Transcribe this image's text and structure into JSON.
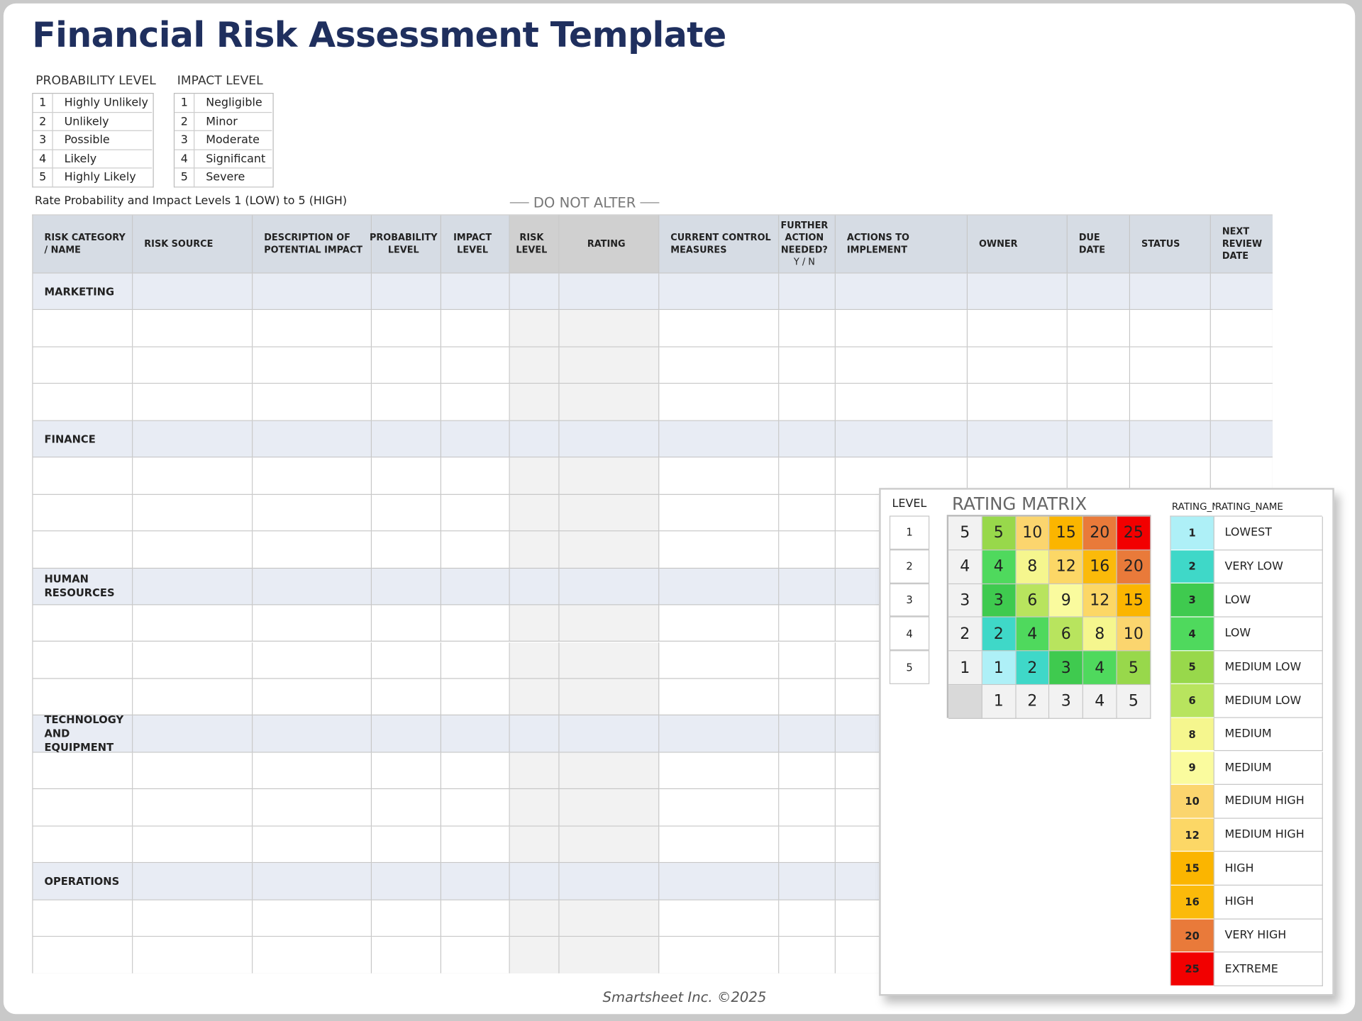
{
  "title": "Financial Risk Assessment Template",
  "probability_level": {
    "heading": "PROBABILITY LEVEL",
    "rows": [
      [
        1,
        "Highly Unlikely"
      ],
      [
        2,
        "Unlikely"
      ],
      [
        3,
        "Possible"
      ],
      [
        4,
        "Likely"
      ],
      [
        5,
        "Highly Likely"
      ]
    ]
  },
  "impact_level": {
    "heading": "IMPACT LEVEL",
    "rows": [
      [
        1,
        "Negligible"
      ],
      [
        2,
        "Minor"
      ],
      [
        3,
        "Moderate"
      ],
      [
        4,
        "Significant"
      ],
      [
        5,
        "Severe"
      ]
    ]
  },
  "rate_note": "Rate Probability and Impact Levels 1 (LOW) to 5 (HIGH)",
  "do_not_alter": "DO NOT ALTER",
  "table": {
    "headers": [
      "RISK CATEGORY / NAME",
      "RISK SOURCE",
      "DESCRIPTION OF POTENTIAL IMPACT",
      "PROBABILITY LEVEL",
      "IMPACT LEVEL",
      "RISK LEVEL",
      "RATING",
      "CURRENT CONTROL MEASURES",
      {
        "text": "FURTHER ACTION NEEDED?",
        "note": "Y / N"
      },
      "ACTIONS TO IMPLEMENT",
      "OWNER",
      "DUE DATE",
      "STATUS",
      "NEXT REVIEW DATE"
    ],
    "sections": [
      "MARKETING",
      "FINANCE",
      "HUMAN RESOURCES",
      "TECHNOLOGY AND EQUIPMENT",
      "OPERATIONS"
    ]
  },
  "rating_matrix": {
    "level_heading": "LEVEL",
    "levels": [
      1,
      2,
      3,
      4,
      5
    ],
    "title": "RATING MATRIX",
    "rows": [
      {
        "label": 5,
        "cells": [
          5,
          10,
          15,
          20,
          25
        ]
      },
      {
        "label": 4,
        "cells": [
          4,
          8,
          12,
          16,
          20
        ]
      },
      {
        "label": 3,
        "cells": [
          3,
          6,
          9,
          12,
          15
        ]
      },
      {
        "label": 2,
        "cells": [
          2,
          4,
          6,
          8,
          10
        ]
      },
      {
        "label": 1,
        "cells": [
          1,
          2,
          3,
          4,
          5
        ]
      }
    ],
    "columns": [
      1,
      2,
      3,
      4,
      5
    ]
  },
  "rating_legend": {
    "headers": [
      "RATING_N",
      "RATING_NAME"
    ],
    "rows": [
      {
        "value": 1,
        "name": "LOWEST",
        "color": "#aef0f7"
      },
      {
        "value": 2,
        "name": "VERY LOW",
        "color": "#3fd8c8"
      },
      {
        "value": 3,
        "name": "LOW",
        "color": "#3fca4f"
      },
      {
        "value": 4,
        "name": "LOW",
        "color": "#4fd95d"
      },
      {
        "value": 5,
        "name": "MEDIUM LOW",
        "color": "#98d84b"
      },
      {
        "value": 6,
        "name": "MEDIUM LOW",
        "color": "#b8e45e"
      },
      {
        "value": 8,
        "name": "MEDIUM",
        "color": "#f5f68e"
      },
      {
        "value": 9,
        "name": "MEDIUM",
        "color": "#fafb9e"
      },
      {
        "value": 10,
        "name": "MEDIUM HIGH",
        "color": "#fbd56e"
      },
      {
        "value": 12,
        "name": "MEDIUM HIGH",
        "color": "#fcd766"
      },
      {
        "value": 15,
        "name": "HIGH",
        "color": "#fbb500"
      },
      {
        "value": 16,
        "name": "HIGH",
        "color": "#fbba0a"
      },
      {
        "value": 20,
        "name": "VERY HIGH",
        "color": "#e97a3a"
      },
      {
        "value": 25,
        "name": "EXTREME",
        "color": "#f20000"
      }
    ]
  },
  "footer": "Smartsheet Inc. ©2025"
}
